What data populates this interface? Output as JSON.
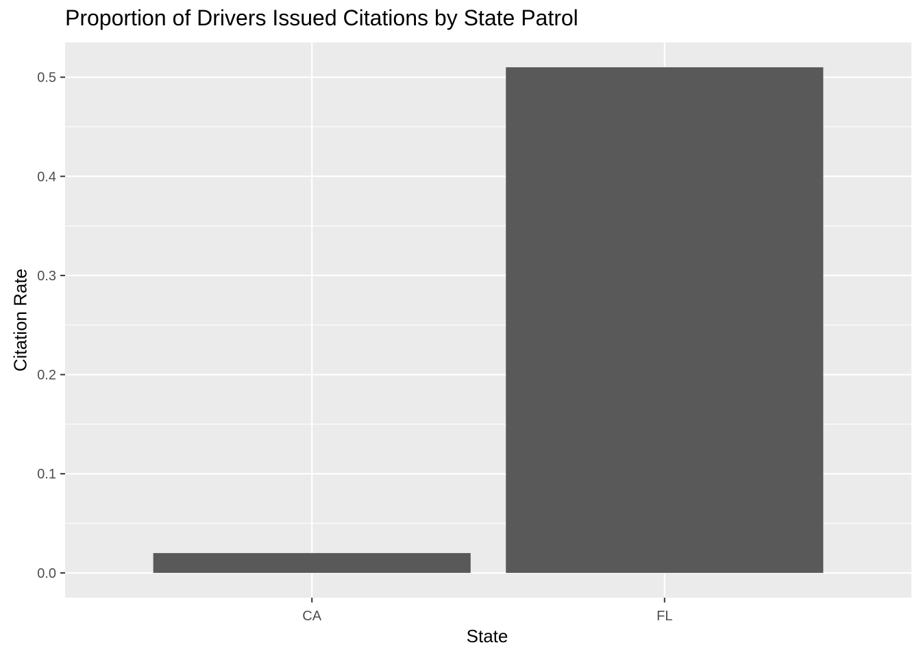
{
  "chart_data": {
    "type": "bar",
    "title": "Proportion of Drivers Issued Citations by State Patrol",
    "xlabel": "State",
    "ylabel": "Citation Rate",
    "categories": [
      "CA",
      "FL"
    ],
    "values": [
      0.02,
      0.51
    ],
    "ylim": [
      -0.025,
      0.535
    ],
    "yticks": [
      0.0,
      0.1,
      0.2,
      0.3,
      0.4,
      0.5
    ],
    "ytick_labels": [
      "0.0",
      "0.1",
      "0.2",
      "0.3",
      "0.4",
      "0.5"
    ],
    "grid": true,
    "legend": "none",
    "colors": {
      "panel_background": "#EBEBEB",
      "grid": "#FFFFFF",
      "bar_fill": "#595959",
      "tick_label": "#4D4D4D",
      "tick_mark": "#333333"
    }
  }
}
